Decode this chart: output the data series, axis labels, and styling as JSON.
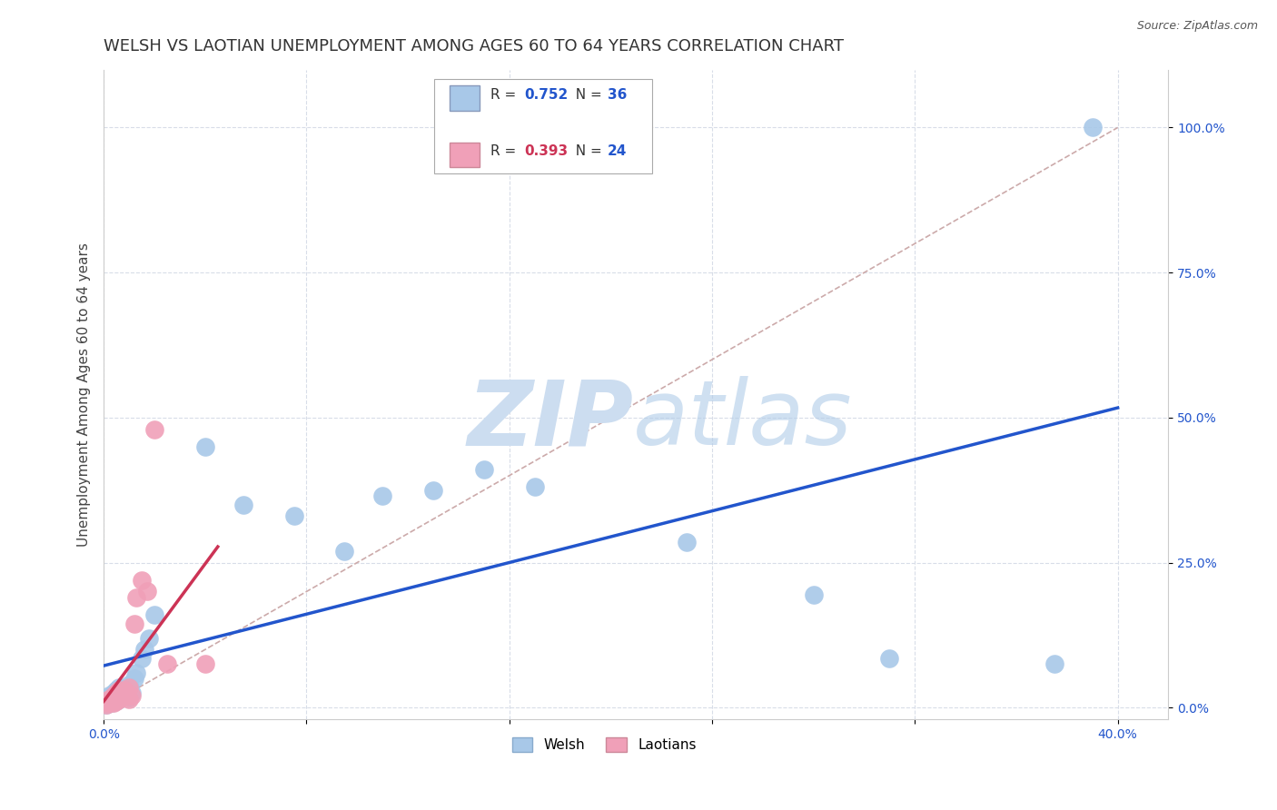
{
  "title": "WELSH VS LAOTIAN UNEMPLOYMENT AMONG AGES 60 TO 64 YEARS CORRELATION CHART",
  "source": "Source: ZipAtlas.com",
  "ylabel": "Unemployment Among Ages 60 to 64 years",
  "xlim": [
    0.0,
    0.42
  ],
  "ylim": [
    -0.02,
    1.1
  ],
  "ytick_vals": [
    0.0,
    0.25,
    0.5,
    0.75,
    1.0
  ],
  "ytick_labels": [
    "0.0%",
    "25.0%",
    "50.0%",
    "75.0%",
    "100.0%"
  ],
  "xtick_vals": [
    0.0,
    0.08,
    0.16,
    0.24,
    0.32,
    0.4
  ],
  "xtick_labels": [
    "0.0%",
    "",
    "",
    "",
    "",
    "40.0%"
  ],
  "welsh_color": "#a8c8e8",
  "laotian_color": "#f0a0b8",
  "welsh_line_color": "#2255cc",
  "laotian_line_color": "#cc3355",
  "diag_color": "#ccaaaa",
  "watermark_zip_color": "#ccddf0",
  "watermark_atlas_color": "#b0cce8",
  "background_color": "#ffffff",
  "grid_color": "#d8dde8",
  "title_fontsize": 13,
  "axis_label_fontsize": 11,
  "tick_fontsize": 10,
  "source_fontsize": 9,
  "r_welsh": "0.752",
  "n_welsh": "36",
  "r_laotian": "0.393",
  "n_laotian": "24",
  "r_val_color_welsh": "#2255cc",
  "r_val_color_laotian": "#cc3355",
  "n_val_color": "#2255cc",
  "welsh_x": [
    0.001,
    0.002,
    0.002,
    0.003,
    0.003,
    0.004,
    0.004,
    0.005,
    0.005,
    0.006,
    0.006,
    0.007,
    0.008,
    0.009,
    0.01,
    0.01,
    0.011,
    0.012,
    0.013,
    0.015,
    0.016,
    0.018,
    0.02,
    0.04,
    0.055,
    0.075,
    0.095,
    0.11,
    0.13,
    0.15,
    0.17,
    0.23,
    0.28,
    0.31,
    0.375,
    0.39
  ],
  "welsh_y": [
    0.005,
    0.01,
    0.02,
    0.008,
    0.015,
    0.01,
    0.025,
    0.012,
    0.03,
    0.015,
    0.035,
    0.02,
    0.025,
    0.03,
    0.018,
    0.04,
    0.025,
    0.05,
    0.06,
    0.085,
    0.1,
    0.12,
    0.16,
    0.45,
    0.35,
    0.33,
    0.27,
    0.365,
    0.375,
    0.41,
    0.38,
    0.285,
    0.195,
    0.085,
    0.075,
    1.0
  ],
  "laotian_x": [
    0.001,
    0.002,
    0.002,
    0.003,
    0.004,
    0.004,
    0.005,
    0.005,
    0.006,
    0.006,
    0.007,
    0.008,
    0.008,
    0.009,
    0.01,
    0.01,
    0.011,
    0.012,
    0.013,
    0.015,
    0.017,
    0.02,
    0.025,
    0.04
  ],
  "laotian_y": [
    0.005,
    0.008,
    0.015,
    0.01,
    0.008,
    0.02,
    0.012,
    0.025,
    0.015,
    0.03,
    0.02,
    0.025,
    0.03,
    0.02,
    0.035,
    0.015,
    0.02,
    0.145,
    0.19,
    0.22,
    0.2,
    0.48,
    0.075,
    0.075
  ]
}
